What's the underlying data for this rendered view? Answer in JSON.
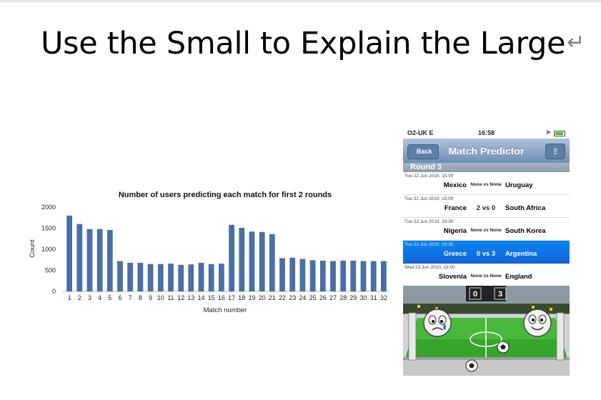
{
  "slide": {
    "title": "Use the Small to Explain the Large",
    "return_glyph": "↵"
  },
  "chart_data": {
    "type": "bar",
    "title": "Number of users predicting each match for first 2 rounds",
    "xlabel": "Match number",
    "ylabel": "Count",
    "ylim": [
      0,
      2000
    ],
    "yticks": [
      0,
      500,
      1000,
      1500,
      2000
    ],
    "categories": [
      "1",
      "2",
      "3",
      "4",
      "5",
      "6",
      "7",
      "8",
      "9",
      "10",
      "11",
      "12",
      "13",
      "14",
      "15",
      "16",
      "17",
      "18",
      "19",
      "20",
      "21",
      "22",
      "23",
      "24",
      "25",
      "26",
      "27",
      "28",
      "29",
      "30",
      "31",
      "32"
    ],
    "values": [
      1800,
      1600,
      1480,
      1480,
      1460,
      720,
      680,
      680,
      650,
      650,
      660,
      630,
      640,
      680,
      650,
      660,
      1580,
      1510,
      1420,
      1410,
      1360,
      790,
      800,
      770,
      740,
      730,
      720,
      730,
      730,
      720,
      720,
      720
    ],
    "bar_color": "#4a6fa5",
    "grid": false,
    "legend": "none"
  },
  "phone": {
    "status": {
      "carrier": "O2-UK  E",
      "time": "16:58"
    },
    "nav": {
      "back_label": "Back",
      "title": "Match Predictor",
      "share_icon": "share-icon"
    },
    "section": "Round 3",
    "matches": [
      {
        "datetime": "Tue 22 Jun 2010, 15:00",
        "home": "Mexico",
        "score": "None vs None",
        "away": "Uruguay",
        "selected": false
      },
      {
        "datetime": "Tue 22 Jun 2010, 15:00",
        "home": "France",
        "score": "2 vs 0",
        "away": "South Africa",
        "selected": false
      },
      {
        "datetime": "Tue 22 Jun 2010, 19:30",
        "home": "Nigeria",
        "score": "None vs None",
        "away": "South Korea",
        "selected": false
      },
      {
        "datetime": "Tue 22 Jun 2010, 19:30",
        "home": "Greece",
        "score": "0 vs 3",
        "away": "Argentina",
        "selected": true
      },
      {
        "datetime": "Wed 23 Jun 2010, 15:00",
        "home": "Slovenia",
        "score": "None vs None",
        "away": "England",
        "selected": false
      }
    ],
    "game": {
      "home_score": "0",
      "away_score": "3"
    }
  }
}
